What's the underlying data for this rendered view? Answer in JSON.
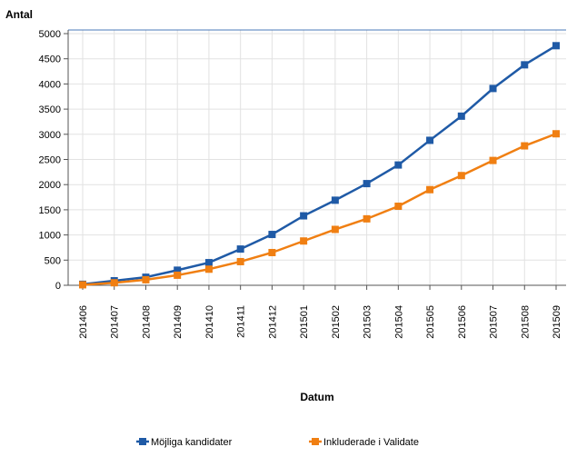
{
  "chart_data": {
    "type": "line",
    "y_label": "Antal",
    "x_label": "Datum",
    "categories": [
      "201406",
      "201407",
      "201408",
      "201409",
      "201410",
      "201411",
      "201412",
      "201501",
      "201502",
      "201503",
      "201504",
      "201505",
      "201506",
      "201507",
      "201508",
      "201509"
    ],
    "series": [
      {
        "name": "Möjliga kandidater",
        "color": "#1f5aa6",
        "values": [
          20,
          90,
          160,
          300,
          450,
          720,
          1010,
          1380,
          1690,
          2020,
          2390,
          2880,
          3360,
          3910,
          4380,
          4760
        ]
      },
      {
        "name": "Inkluderade i Validate",
        "color": "#f07f12",
        "values": [
          10,
          50,
          110,
          200,
          320,
          470,
          650,
          880,
          1110,
          1320,
          1570,
          1900,
          2180,
          2480,
          2770,
          3010
        ]
      }
    ],
    "ylim": [
      0,
      5000
    ],
    "yticks": [
      0,
      500,
      1000,
      1500,
      2000,
      2500,
      3000,
      3500,
      4000,
      4500,
      5000
    ],
    "grid": true,
    "legend": "bottom"
  }
}
